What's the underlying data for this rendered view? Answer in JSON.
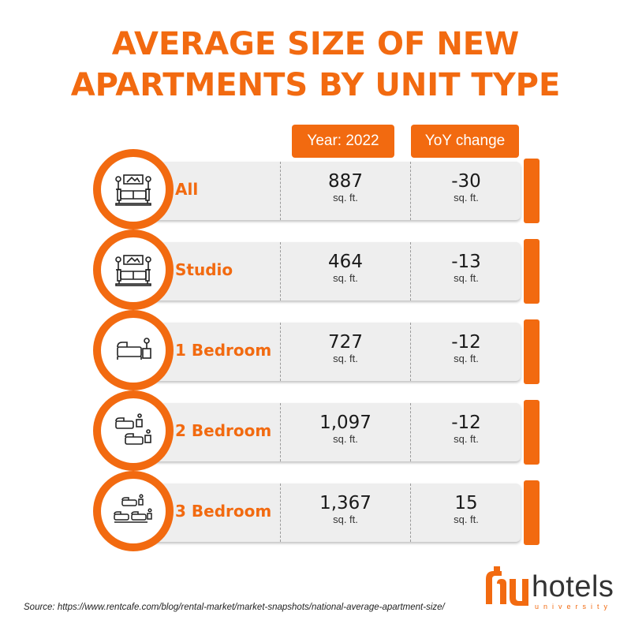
{
  "title": {
    "line1": "AVERAGE SIZE OF NEW",
    "line2": "APARTMENTS BY UNIT TYPE"
  },
  "headers": {
    "year": "Year: 2022",
    "yoy": "YoY change"
  },
  "rows": [
    {
      "label": "All",
      "icon": "living-room-icon",
      "year_value": "887",
      "year_unit": "sq. ft.",
      "yoy_value": "-30",
      "yoy_unit": "sq. ft."
    },
    {
      "label": "Studio",
      "icon": "living-room-icon",
      "year_value": "464",
      "year_unit": "sq. ft.",
      "yoy_value": "-13",
      "yoy_unit": "sq. ft."
    },
    {
      "label": "1 Bedroom",
      "icon": "single-bed-icon",
      "year_value": "727",
      "year_unit": "sq. ft.",
      "yoy_value": "-12",
      "yoy_unit": "sq. ft."
    },
    {
      "label": "2 Bedroom",
      "icon": "two-beds-icon",
      "year_value": "1,097",
      "year_unit": "sq. ft.",
      "yoy_value": "-12",
      "yoy_unit": "sq. ft."
    },
    {
      "label": "3 Bedroom",
      "icon": "three-beds-icon",
      "year_value": "1,367",
      "year_unit": "sq. ft.",
      "yoy_value": "15",
      "yoy_unit": "sq. ft."
    }
  ],
  "chart_data": {
    "type": "table",
    "title": "AVERAGE SIZE OF NEW APARTMENTS BY UNIT TYPE",
    "columns": [
      "Year: 2022",
      "YoY change"
    ],
    "categories": [
      "All",
      "Studio",
      "1 Bedroom",
      "2 Bedroom",
      "3 Bedroom"
    ],
    "series": [
      {
        "name": "Year: 2022",
        "values": [
          887,
          464,
          727,
          1097,
          1367
        ],
        "unit": "sq. ft."
      },
      {
        "name": "YoY change",
        "values": [
          -30,
          -13,
          -12,
          -12,
          15
        ],
        "unit": "sq. ft."
      }
    ]
  },
  "source": "Source: https://www.rentcafe.com/blog/rental-market/market-snapshots/national-average-apartment-size/",
  "logo": {
    "word": "hotels",
    "sub": "university"
  },
  "colors": {
    "accent": "#f26a10",
    "card": "#eeeeee",
    "text": "#1a1a1a"
  }
}
